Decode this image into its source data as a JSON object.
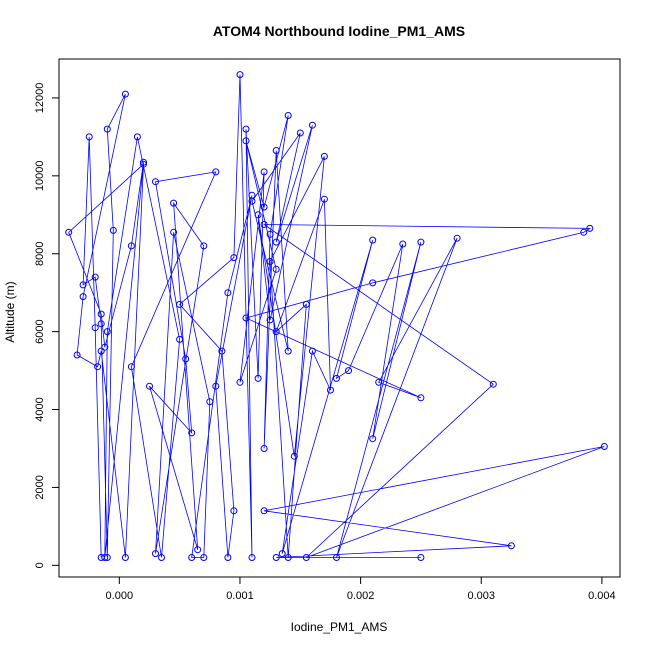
{
  "chart_data": {
    "type": "line",
    "title": "ATOM4 Northbound Iodine_PM1_AMS",
    "xlabel": "Iodine_PM1_AMS",
    "ylabel": "Altitude (m)",
    "xlim": [
      -0.0005,
      0.00415
    ],
    "ylim": [
      -300,
      13000
    ],
    "xticks": [
      {
        "value": 0.0,
        "label": "0.000"
      },
      {
        "value": 0.001,
        "label": "0.001"
      },
      {
        "value": 0.002,
        "label": "0.002"
      },
      {
        "value": 0.003,
        "label": "0.003"
      },
      {
        "value": 0.004,
        "label": "0.004"
      }
    ],
    "yticks": [
      {
        "value": 0,
        "label": "0"
      },
      {
        "value": 2000,
        "label": "2000"
      },
      {
        "value": 4000,
        "label": "4000"
      },
      {
        "value": 6000,
        "label": "6000"
      },
      {
        "value": 8000,
        "label": "8000"
      },
      {
        "value": 10000,
        "label": "10000"
      },
      {
        "value": 12000,
        "label": "12000"
      }
    ],
    "grid": false,
    "series": [
      {
        "color": "#0000ff",
        "marker": "open-circle",
        "points": [
          [
            -0.00015,
            200
          ],
          [
            -0.0002,
            6100
          ],
          [
            -0.00025,
            11000
          ],
          [
            -0.0003,
            7200
          ],
          [
            -0.0002,
            7400
          ],
          [
            -0.00015,
            6200
          ],
          [
            -0.0001,
            200
          ],
          [
            -5e-05,
            8600
          ],
          [
            -0.0001,
            11200
          ],
          [
            5e-05,
            12100
          ],
          [
            -0.0003,
            6900
          ],
          [
            -0.00035,
            5400
          ],
          [
            -0.00018,
            5100
          ],
          [
            -0.00015,
            5500
          ],
          [
            5e-05,
            200
          ],
          [
            0.0002,
            10300
          ],
          [
            -0.00042,
            8550
          ],
          [
            -0.00015,
            6450
          ],
          [
            -0.00012,
            5600
          ],
          [
            0.0001,
            8200
          ],
          [
            0.0002,
            10350
          ],
          [
            -0.00012,
            200
          ],
          [
            -0.0001,
            6000
          ],
          [
            0.00015,
            11000
          ],
          [
            0.0005,
            5800
          ],
          [
            0.00035,
            200
          ],
          [
            0.0001,
            5100
          ],
          [
            0.0008,
            10100
          ],
          [
            0.0003,
            9850
          ],
          [
            0.00055,
            5300
          ],
          [
            0.0006,
            3400
          ],
          [
            0.00025,
            4600
          ],
          [
            0.00065,
            400
          ],
          [
            0.00045,
            9300
          ],
          [
            0.0007,
            8200
          ],
          [
            0.0003,
            300
          ],
          [
            0.00045,
            8550
          ],
          [
            0.00075,
            4200
          ],
          [
            0.0007,
            200
          ],
          [
            0.0006,
            200
          ],
          [
            0.0009,
            7000
          ],
          [
            0.0011,
            9500
          ],
          [
            0.0008,
            4600
          ],
          [
            0.0009,
            200
          ],
          [
            0.00095,
            1400
          ],
          [
            0.00085,
            5500
          ],
          [
            0.0005,
            6700
          ],
          [
            0.00095,
            7900
          ],
          [
            0.001,
            12600
          ],
          [
            0.0011,
            200
          ],
          [
            0.00105,
            11200
          ],
          [
            0.00115,
            4800
          ],
          [
            0.0012,
            10100
          ],
          [
            0.001,
            4700
          ],
          [
            0.0013,
            7600
          ],
          [
            0.00105,
            10900
          ],
          [
            0.0012,
            9200
          ],
          [
            0.0014,
            11550
          ],
          [
            0.00125,
            8500
          ],
          [
            0.0012,
            3000
          ],
          [
            0.0013,
            10650
          ],
          [
            0.0014,
            5500
          ],
          [
            0.0011,
            9350
          ],
          [
            0.0015,
            11100
          ],
          [
            0.0013,
            8300
          ],
          [
            0.0016,
            11300
          ],
          [
            0.00125,
            6300
          ],
          [
            0.00115,
            9000
          ],
          [
            0.00145,
            2800
          ],
          [
            0.0017,
            10500
          ],
          [
            0.00125,
            7800
          ],
          [
            0.0014,
            200
          ],
          [
            0.00155,
            6700
          ],
          [
            0.0013,
            6000
          ],
          [
            0.0017,
            9400
          ],
          [
            0.00175,
            4500
          ],
          [
            0.0016,
            5500
          ],
          [
            0.00135,
            300
          ],
          [
            0.0021,
            8350
          ],
          [
            0.0018,
            4800
          ],
          [
            0.0019,
            5000
          ],
          [
            0.00235,
            8250
          ],
          [
            0.0021,
            3250
          ],
          [
            0.0025,
            8300
          ],
          [
            0.0018,
            200
          ],
          [
            0.0028,
            8400
          ],
          [
            0.00215,
            4700
          ],
          [
            0.0025,
            4300
          ],
          [
            0.00105,
            6350
          ],
          [
            0.0021,
            7250
          ],
          [
            0.00385,
            8550
          ],
          [
            0.0039,
            8650
          ],
          [
            0.0012,
            8750
          ],
          [
            0.0031,
            4650
          ],
          [
            0.00155,
            200
          ],
          [
            0.00402,
            3050
          ],
          [
            0.0012,
            1400
          ],
          [
            0.00325,
            500
          ],
          [
            0.0013,
            200
          ],
          [
            0.0025,
            200
          ]
        ]
      }
    ]
  }
}
